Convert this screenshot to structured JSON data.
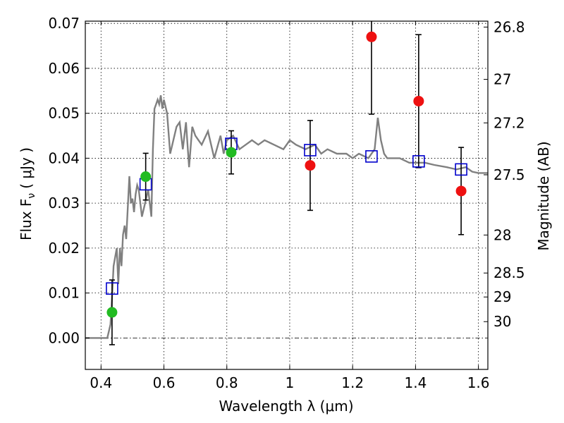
{
  "chart_data": {
    "type": "scatter",
    "xlabel": "Wavelength  λ (μm)",
    "ylabel_left": "Flux  F",
    "ylabel_left_sub": "ν",
    "ylabel_left_unit": "( μJy )",
    "ylabel_right": "Magnitude (AB)",
    "xlim": [
      0.35,
      1.63
    ],
    "ylim": [
      -0.007,
      0.0705
    ],
    "grid": true,
    "x_ticks": [
      0.4,
      0.6,
      0.8,
      1.0,
      1.2,
      1.4,
      1.6
    ],
    "x_tick_labels": [
      "0.4",
      "0.6",
      "0.8",
      "1",
      "1.2",
      "1.4",
      "1.6"
    ],
    "y_ticks": [
      0.0,
      0.01,
      0.02,
      0.03,
      0.04,
      0.05,
      0.06,
      0.07
    ],
    "y_tick_labels": [
      "0.00",
      "0.01",
      "0.02",
      "0.03",
      "0.04",
      "0.05",
      "0.06",
      "0.07"
    ],
    "right_ticks": [
      {
        "label": "26.8",
        "value": 26.8
      },
      {
        "label": "27",
        "value": 27.0
      },
      {
        "label": "27.2",
        "value": 27.2
      },
      {
        "label": "27.5",
        "value": 27.5
      },
      {
        "label": "28",
        "value": 28.0
      },
      {
        "label": "28.5",
        "value": 28.5
      },
      {
        "label": "29",
        "value": 29.0
      },
      {
        "label": "30",
        "value": 30.0
      }
    ],
    "colors": {
      "green": "#22bb22",
      "red": "#ee1111",
      "model": "#808080",
      "model_box": "#0000cc",
      "errorbar": "#000000"
    },
    "series": [
      {
        "marker": "circle",
        "color": "green",
        "points": [
          {
            "x": 0.435,
            "y": 0.0057,
            "yerr": 0.0072
          },
          {
            "x": 0.542,
            "y": 0.0359,
            "yerr": 0.0052
          },
          {
            "x": 0.814,
            "y": 0.0413,
            "yerr": 0.0048
          }
        ]
      },
      {
        "marker": "circle",
        "color": "red",
        "points": [
          {
            "x": 1.065,
            "y": 0.0384,
            "yerr": 0.01
          },
          {
            "x": 1.26,
            "y": 0.067,
            "yerr": 0.0172
          },
          {
            "x": 1.41,
            "y": 0.0527,
            "yerr": 0.0148
          },
          {
            "x": 1.545,
            "y": 0.0327,
            "yerr": 0.0097
          }
        ]
      },
      {
        "marker": "square",
        "color": "model_box",
        "points": [
          {
            "x": 0.435,
            "y": 0.011
          },
          {
            "x": 0.542,
            "y": 0.0342
          },
          {
            "x": 0.814,
            "y": 0.0432
          },
          {
            "x": 1.065,
            "y": 0.0418
          },
          {
            "x": 1.26,
            "y": 0.0404
          },
          {
            "x": 1.41,
            "y": 0.0393
          },
          {
            "x": 1.545,
            "y": 0.0375
          }
        ]
      },
      {
        "marker": "line",
        "color": "model",
        "x": [
          0.35,
          0.41,
          0.42,
          0.43,
          0.435,
          0.44,
          0.45,
          0.455,
          0.46,
          0.465,
          0.47,
          0.475,
          0.48,
          0.49,
          0.495,
          0.5,
          0.505,
          0.51,
          0.515,
          0.52,
          0.53,
          0.54,
          0.55,
          0.56,
          0.565,
          0.57,
          0.575,
          0.58,
          0.585,
          0.59,
          0.595,
          0.6,
          0.61,
          0.62,
          0.63,
          0.64,
          0.65,
          0.66,
          0.67,
          0.68,
          0.69,
          0.7,
          0.71,
          0.72,
          0.74,
          0.76,
          0.78,
          0.79,
          0.8,
          0.82,
          0.84,
          0.86,
          0.88,
          0.9,
          0.92,
          0.95,
          0.98,
          1.0,
          1.02,
          1.05,
          1.08,
          1.1,
          1.12,
          1.15,
          1.18,
          1.2,
          1.22,
          1.25,
          1.27,
          1.28,
          1.29,
          1.3,
          1.31,
          1.33,
          1.35,
          1.38,
          1.4,
          1.43,
          1.46,
          1.5,
          1.53,
          1.56,
          1.58,
          1.6,
          1.63
        ],
        "y": [
          0.0,
          0.0,
          0.0,
          0.003,
          0.009,
          0.016,
          0.02,
          0.012,
          0.02,
          0.016,
          0.023,
          0.025,
          0.022,
          0.036,
          0.03,
          0.031,
          0.028,
          0.032,
          0.034,
          0.033,
          0.027,
          0.03,
          0.033,
          0.027,
          0.042,
          0.051,
          0.052,
          0.053,
          0.052,
          0.054,
          0.051,
          0.053,
          0.05,
          0.041,
          0.044,
          0.047,
          0.048,
          0.042,
          0.048,
          0.038,
          0.047,
          0.045,
          0.044,
          0.043,
          0.046,
          0.04,
          0.045,
          0.041,
          0.044,
          0.045,
          0.042,
          0.043,
          0.044,
          0.043,
          0.044,
          0.043,
          0.042,
          0.044,
          0.043,
          0.042,
          0.043,
          0.041,
          0.042,
          0.041,
          0.041,
          0.04,
          0.041,
          0.04,
          0.042,
          0.049,
          0.044,
          0.041,
          0.04,
          0.04,
          0.04,
          0.039,
          0.039,
          0.039,
          0.0385,
          0.038,
          0.0375,
          0.038,
          0.037,
          0.0367,
          0.0367
        ]
      }
    ]
  }
}
